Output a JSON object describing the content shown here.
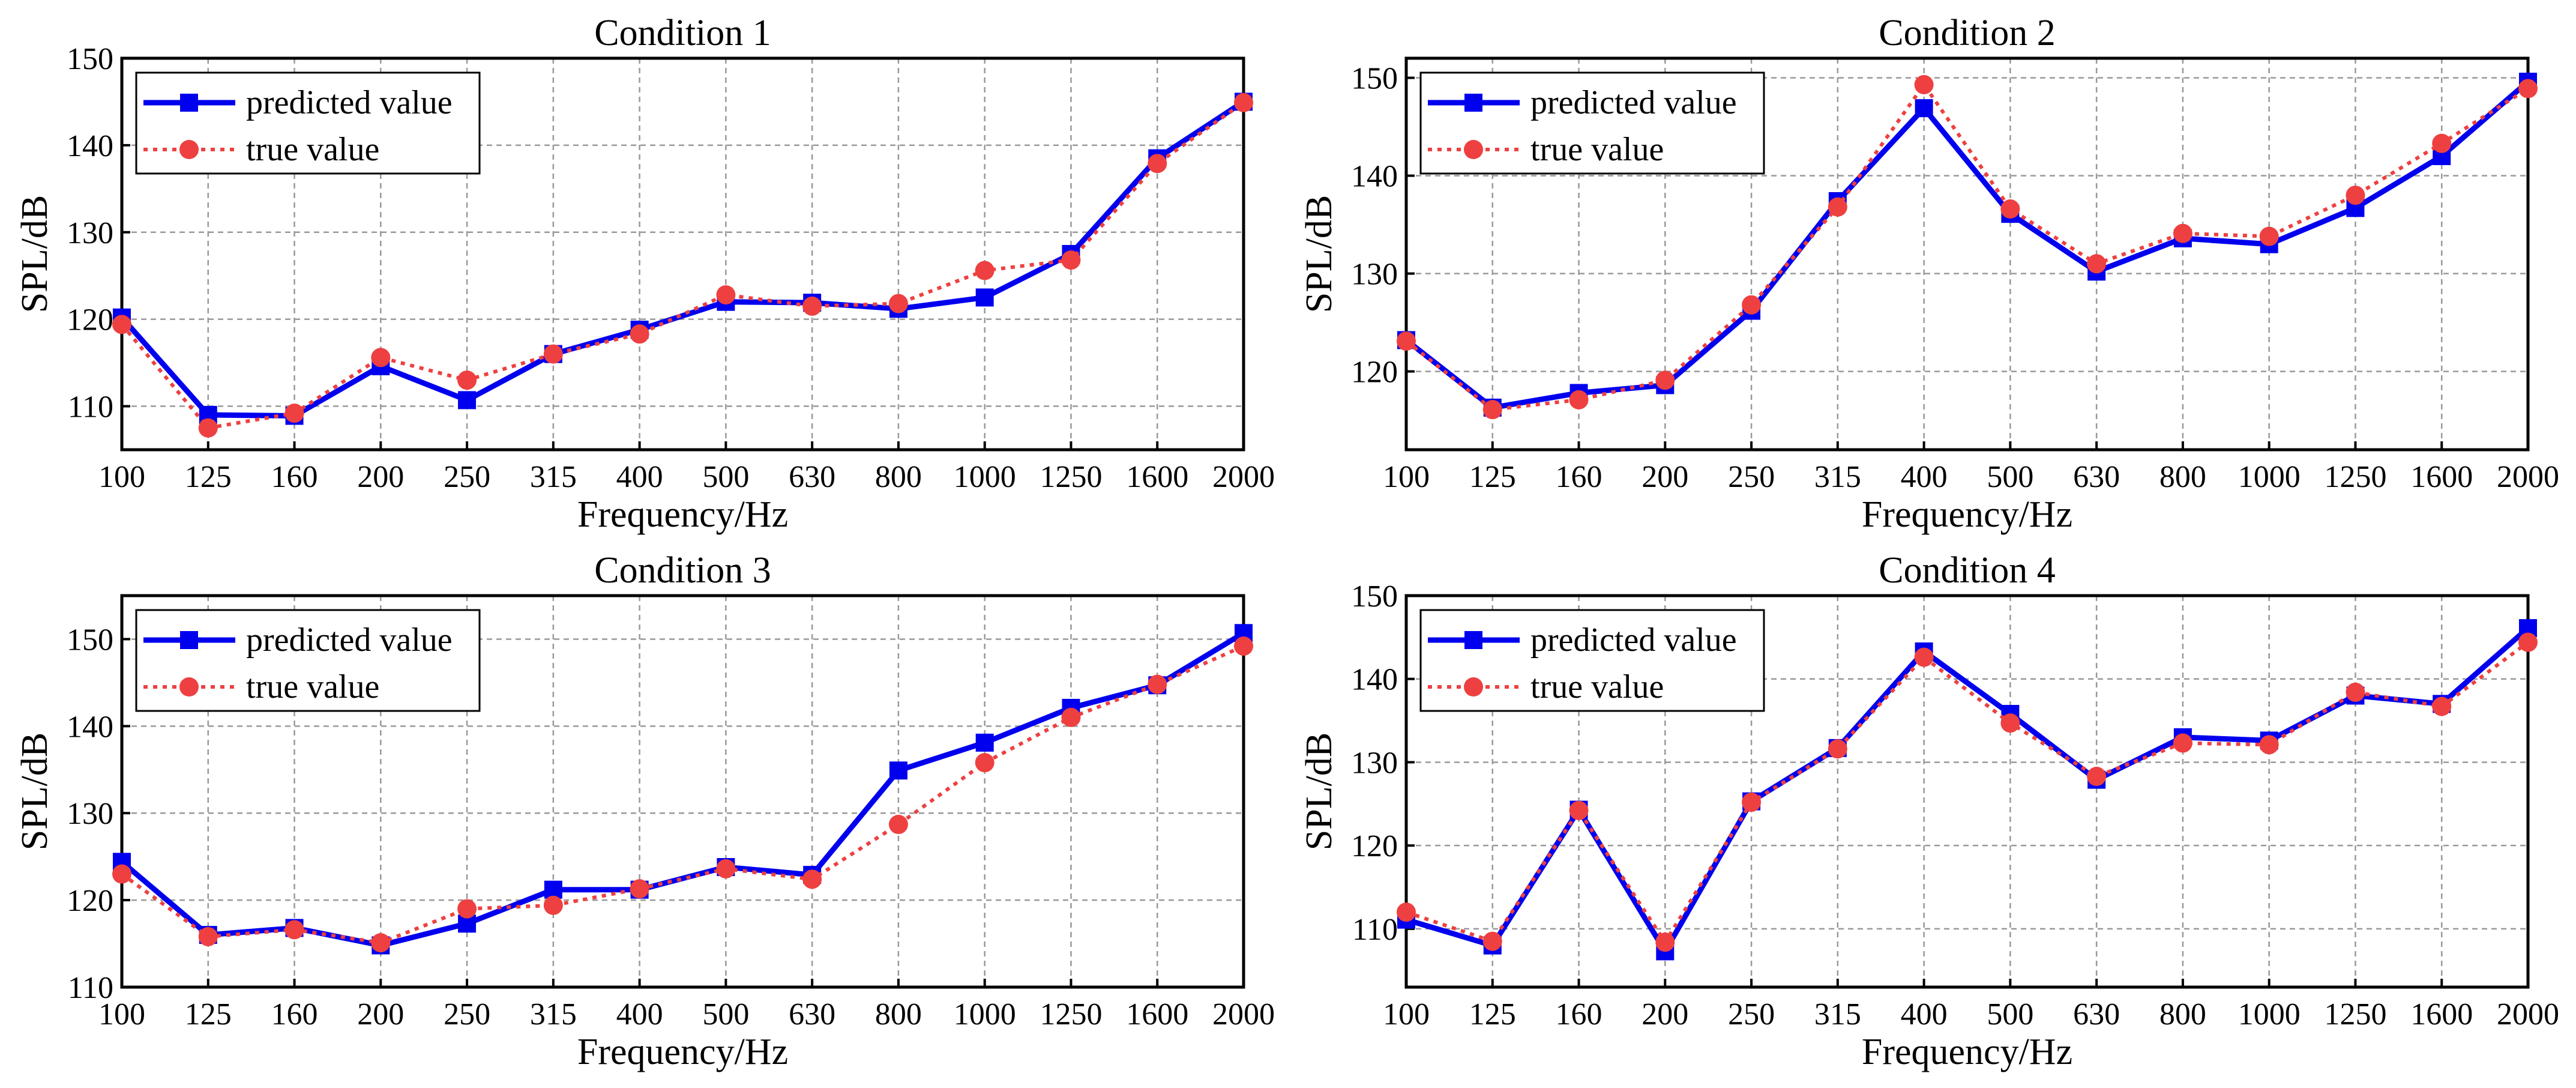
{
  "figure": {
    "colors": {
      "predicted": "#0000ee",
      "true": "#ee4040",
      "grid": "#999999",
      "axis": "#000000"
    }
  },
  "chart_data": [
    {
      "type": "line",
      "title": "Condition 1",
      "xlabel": "Frequency/Hz",
      "ylabel": "SPL/dB",
      "categories": [
        "100",
        "125",
        "160",
        "200",
        "250",
        "315",
        "400",
        "500",
        "630",
        "800",
        "1000",
        "1250",
        "1600",
        "2000"
      ],
      "ylim": [
        105,
        150
      ],
      "yticks": [
        110,
        120,
        130,
        140,
        150
      ],
      "grid": true,
      "legend": "top-left",
      "series": [
        {
          "name": "predicted value",
          "values": [
            120.2,
            109.0,
            108.9,
            114.6,
            110.7,
            116.0,
            118.8,
            122.0,
            121.9,
            121.2,
            122.5,
            127.5,
            138.5,
            145.0
          ]
        },
        {
          "name": "true value",
          "values": [
            119.4,
            107.5,
            109.2,
            115.6,
            113.0,
            116.0,
            118.3,
            122.8,
            121.5,
            121.8,
            125.6,
            126.8,
            137.9,
            144.9
          ]
        }
      ]
    },
    {
      "type": "line",
      "title": "Condition 2",
      "xlabel": "Frequency/Hz",
      "ylabel": "SPL/dB",
      "categories": [
        "100",
        "125",
        "160",
        "200",
        "250",
        "315",
        "400",
        "500",
        "630",
        "800",
        "1000",
        "1250",
        "1600",
        "2000"
      ],
      "ylim": [
        112,
        152
      ],
      "yticks": [
        120,
        130,
        140,
        150
      ],
      "grid": true,
      "legend": "top-left",
      "series": [
        {
          "name": "predicted value",
          "values": [
            123.2,
            116.3,
            117.8,
            118.6,
            126.2,
            137.4,
            146.9,
            136.1,
            130.2,
            133.6,
            133.0,
            136.7,
            142.0,
            149.6
          ]
        },
        {
          "name": "true value",
          "values": [
            123.1,
            116.1,
            117.1,
            119.1,
            126.8,
            136.8,
            149.3,
            136.6,
            131.0,
            134.1,
            133.8,
            138.0,
            143.3,
            148.9
          ]
        }
      ]
    },
    {
      "type": "line",
      "title": "Condition 3",
      "xlabel": "Frequency/Hz",
      "ylabel": "SPL/dB",
      "categories": [
        "100",
        "125",
        "160",
        "200",
        "250",
        "315",
        "400",
        "500",
        "630",
        "800",
        "1000",
        "1250",
        "1600",
        "2000"
      ],
      "ylim": [
        110,
        155
      ],
      "yticks": [
        110,
        120,
        130,
        140,
        150
      ],
      "grid": true,
      "legend": "top-left",
      "series": [
        {
          "name": "predicted value",
          "values": [
            124.4,
            116.0,
            116.8,
            114.8,
            117.3,
            121.2,
            121.2,
            123.8,
            122.9,
            134.9,
            138.1,
            142.1,
            144.7,
            150.7
          ]
        },
        {
          "name": "true value",
          "values": [
            123.0,
            115.8,
            116.6,
            115.1,
            119.0,
            119.4,
            121.3,
            123.6,
            122.4,
            128.7,
            135.8,
            141.0,
            144.8,
            149.2
          ]
        }
      ]
    },
    {
      "type": "line",
      "title": "Condition 4",
      "xlabel": "Frequency/Hz",
      "ylabel": "SPL/dB",
      "categories": [
        "100",
        "125",
        "160",
        "200",
        "250",
        "315",
        "400",
        "500",
        "630",
        "800",
        "1000",
        "1250",
        "1600",
        "2000"
      ],
      "ylim": [
        103,
        150
      ],
      "yticks": [
        110,
        120,
        130,
        140,
        150
      ],
      "grid": true,
      "legend": "top-left",
      "series": [
        {
          "name": "predicted value",
          "values": [
            111.1,
            108.0,
            124.3,
            107.3,
            125.3,
            131.7,
            143.3,
            135.8,
            127.9,
            133.0,
            132.6,
            138.0,
            137.0,
            146.1
          ]
        },
        {
          "name": "true value",
          "values": [
            112.0,
            108.5,
            124.2,
            108.4,
            125.2,
            131.6,
            142.6,
            134.7,
            128.3,
            132.3,
            132.1,
            138.4,
            136.7,
            144.4
          ]
        }
      ]
    }
  ]
}
